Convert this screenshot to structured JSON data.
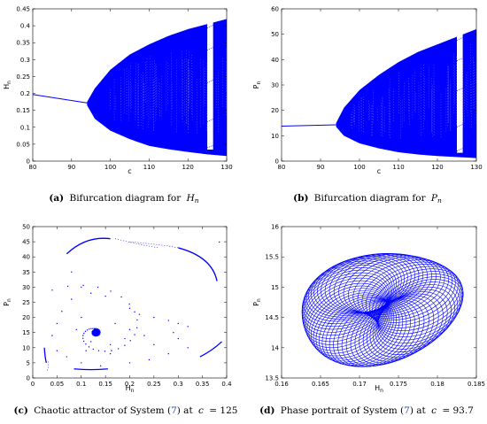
{
  "chart_data": [
    {
      "id": "a",
      "type": "scatter",
      "subtype": "bifurcation",
      "xlabel": "c",
      "ylabel": "H_n",
      "xlim": [
        80,
        130
      ],
      "ylim": [
        0,
        0.45
      ],
      "xticks": [
        80,
        90,
        100,
        110,
        120,
        130
      ],
      "yticks": [
        0,
        0.05,
        0.1,
        0.15,
        0.2,
        0.25,
        0.3,
        0.35,
        0.4,
        0.45
      ],
      "ytick_labels": [
        "0",
        "0.05",
        "0.1",
        "0.15",
        "0.2",
        "0.25",
        "0.3",
        "0.35",
        "0.4",
        "0.45"
      ],
      "stable_branch": {
        "x": [
          80,
          94
        ],
        "y": [
          0.197,
          0.172
        ]
      },
      "chaotic_envelope": {
        "x": [
          94,
          96,
          100,
          105,
          110,
          115,
          120,
          125,
          130
        ],
        "upper": [
          0.175,
          0.215,
          0.27,
          0.315,
          0.345,
          0.37,
          0.39,
          0.405,
          0.42
        ],
        "lower": [
          0.165,
          0.125,
          0.09,
          0.065,
          0.045,
          0.035,
          0.027,
          0.02,
          0.015
        ]
      },
      "periodic_window": [
        125,
        126.5
      ],
      "caption_label": "(a)",
      "caption_text": "Bifurcation diagram for",
      "caption_var": "H",
      "caption_sub": "n"
    },
    {
      "id": "b",
      "type": "scatter",
      "subtype": "bifurcation",
      "xlabel": "c",
      "ylabel": "P_n",
      "xlim": [
        80,
        130
      ],
      "ylim": [
        0,
        60
      ],
      "xticks": [
        80,
        90,
        100,
        110,
        120,
        130
      ],
      "yticks": [
        0,
        10,
        20,
        30,
        40,
        50,
        60
      ],
      "ytick_labels": [
        "0",
        "10",
        "20",
        "30",
        "40",
        "50",
        "60"
      ],
      "stable_branch": {
        "x": [
          80,
          94
        ],
        "y": [
          13.8,
          14.3
        ]
      },
      "chaotic_envelope": {
        "x": [
          94,
          96,
          100,
          105,
          110,
          115,
          120,
          125,
          130
        ],
        "upper": [
          15,
          21,
          28,
          34,
          39,
          43,
          46,
          49,
          52
        ],
        "lower": [
          13.5,
          10,
          7,
          5,
          3.5,
          2.6,
          2,
          1.6,
          1.2
        ]
      },
      "periodic_window": [
        125,
        126.5
      ],
      "caption_label": "(b)",
      "caption_text": "Bifurcation diagram for",
      "caption_var": "P",
      "caption_sub": "n"
    },
    {
      "id": "c",
      "type": "scatter",
      "subtype": "phase-chaotic",
      "xlabel": "H_n",
      "ylabel": "P_n",
      "xlim": [
        0,
        0.4
      ],
      "ylim": [
        0,
        50
      ],
      "xticks": [
        0,
        0.05,
        0.1,
        0.15,
        0.2,
        0.25,
        0.3,
        0.35,
        0.4
      ],
      "xtick_labels": [
        "0",
        "0.05",
        "0.1",
        "0.15",
        "0.2",
        "0.25",
        "0.3",
        "0.35",
        "0.4"
      ],
      "yticks": [
        0,
        5,
        10,
        15,
        20,
        25,
        30,
        35,
        40,
        45,
        50
      ],
      "ytick_labels": [
        "0",
        "5",
        "10",
        "15",
        "20",
        "25",
        "30",
        "35",
        "40",
        "45",
        "50"
      ],
      "center": [
        0.13,
        15
      ],
      "caption_label": "(c)",
      "caption_text": "Chaotic attractor of System (",
      "caption_ref": "7",
      "caption_tail": ") at",
      "caption_var": "c",
      "caption_value": "= 125"
    },
    {
      "id": "d",
      "type": "line",
      "subtype": "phase-torus",
      "xlabel": "H_n",
      "ylabel": "P_n",
      "xlim": [
        0.16,
        0.185
      ],
      "ylim": [
        13.5,
        16
      ],
      "xticks": [
        0.16,
        0.165,
        0.17,
        0.175,
        0.18,
        0.185
      ],
      "xtick_labels": [
        "0.16",
        "0.165",
        "0.17",
        "0.175",
        "0.18",
        "0.185"
      ],
      "yticks": [
        13.5,
        14,
        14.5,
        15,
        15.5,
        16
      ],
      "ytick_labels": [
        "13.5",
        "14",
        "14.5",
        "15",
        "15.5",
        "16"
      ],
      "center": [
        0.1725,
        14.65
      ],
      "caption_label": "(d)",
      "caption_text": "Phase portrait of System (",
      "caption_ref": "7",
      "caption_tail": ") at",
      "caption_var": "c",
      "caption_value": "= 93.7"
    }
  ],
  "colors": {
    "data": "#0000ff",
    "axis": "#000000"
  }
}
